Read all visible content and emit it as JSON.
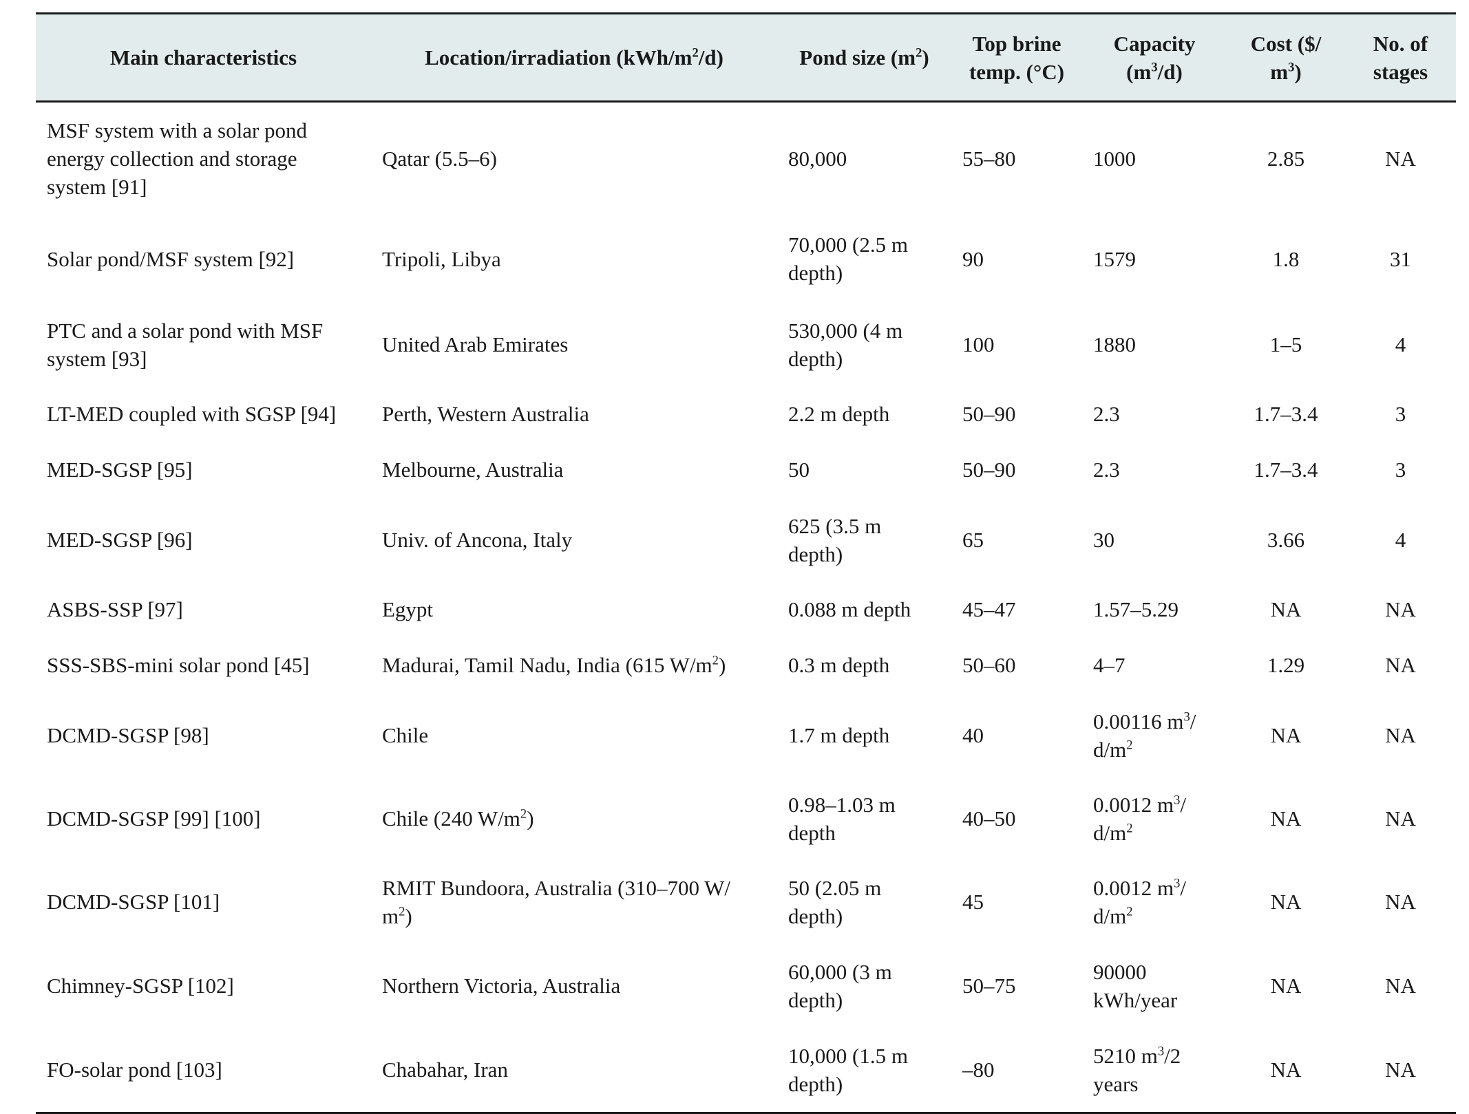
{
  "table": {
    "headers": [
      {
        "text": "Main characteristics"
      },
      {
        "pre": "Location/irradiation (kWh/m",
        "sup": "2",
        "post": "/d)"
      },
      {
        "pre": "Pond size (m",
        "sup": "2",
        "post": ")"
      },
      {
        "line1": "Top brine",
        "line2": "temp. (°C)"
      },
      {
        "line1": "Capacity",
        "line2_pre": "(m",
        "line2_sup": "3",
        "line2_post": "/d)"
      },
      {
        "line1": "Cost ($/",
        "line2_pre": "m",
        "line2_sup": "3",
        "line2_post": ")"
      },
      {
        "line1": "No. of",
        "line2": "stages"
      }
    ],
    "rows": [
      {
        "main": [
          "MSF system with a solar pond",
          "energy collection and storage",
          "system [91]"
        ],
        "location": [
          "Qatar (5.5–6)"
        ],
        "pond": [
          "80,000"
        ],
        "temp": "55–80",
        "capacity": [
          "1000"
        ],
        "cost": "2.85",
        "stages": "NA"
      },
      {
        "main": [
          "Solar pond/MSF system [92]"
        ],
        "location": [
          "Tripoli, Libya"
        ],
        "pond": [
          "70,000 (2.5 m",
          "depth)"
        ],
        "temp": "90",
        "capacity": [
          "1579"
        ],
        "cost": "1.8",
        "stages": "31"
      },
      {
        "main": [
          "PTC and a solar pond with MSF",
          "system [93]"
        ],
        "location": [
          "United Arab Emirates"
        ],
        "pond": [
          "530,000 (4 m",
          "depth)"
        ],
        "temp": "100",
        "capacity": [
          "1880"
        ],
        "cost": "1–5",
        "stages": "4"
      },
      {
        "main": [
          "LT-MED coupled with SGSP [94]"
        ],
        "location": [
          "Perth, Western Australia"
        ],
        "pond": [
          "2.2 m depth"
        ],
        "temp": "50–90",
        "capacity": [
          "2.3"
        ],
        "cost": "1.7–3.4",
        "stages": "3"
      },
      {
        "main": [
          "MED-SGSP [95]"
        ],
        "location": [
          "Melbourne, Australia"
        ],
        "pond": [
          "50"
        ],
        "temp": "50–90",
        "capacity": [
          "2.3"
        ],
        "cost": "1.7–3.4",
        "stages": "3"
      },
      {
        "main": [
          "MED-SGSP [96]"
        ],
        "location": [
          "Univ. of Ancona, Italy"
        ],
        "pond": [
          "625 (3.5 m",
          "depth)"
        ],
        "temp": "65",
        "capacity": [
          "30"
        ],
        "cost": "3.66",
        "stages": "4"
      },
      {
        "main": [
          "ASBS-SSP [97]"
        ],
        "location": [
          "Egypt"
        ],
        "pond": [
          "0.088 m depth"
        ],
        "temp": "45–47",
        "capacity": [
          "1.57–5.29"
        ],
        "cost": "NA",
        "stages": "NA"
      },
      {
        "main": [
          "SSS-SBS-mini solar pond [45]"
        ],
        "location_pre": "Madurai, Tamil Nadu, India (615 W/m",
        "location_sup": "2",
        "location_post": ")",
        "pond": [
          "0.3 m depth"
        ],
        "temp": "50–60",
        "capacity": [
          "4–7"
        ],
        "cost": "1.29",
        "stages": "NA"
      },
      {
        "main": [
          "DCMD-SGSP [98]"
        ],
        "location": [
          "Chile"
        ],
        "pond": [
          "1.7 m depth"
        ],
        "temp": "40",
        "cap1_pre": "0.00116 m",
        "cap1_sup": "3",
        "cap1_post": "/",
        "cap2_pre": "d/m",
        "cap2_sup": "2",
        "cost": "NA",
        "stages": "NA"
      },
      {
        "main": [
          "DCMD-SGSP [99] [100]"
        ],
        "location_pre": "Chile (240 W/m",
        "location_sup": "2",
        "location_post": ")",
        "pond": [
          "0.98–1.03 m",
          "depth"
        ],
        "temp": "40–50",
        "cap1_pre": "0.0012 m",
        "cap1_sup": "3",
        "cap1_post": "/",
        "cap2_pre": "d/m",
        "cap2_sup": "2",
        "cost": "NA",
        "stages": "NA"
      },
      {
        "main": [
          "DCMD-SGSP [101]"
        ],
        "loc1": "RMIT Bundoora, Australia (310–700 W/",
        "loc2_pre": "m",
        "loc2_sup": "2",
        "loc2_post": ")",
        "pond": [
          "50 (2.05 m",
          "depth)"
        ],
        "temp": "45",
        "cap1_pre": "0.0012 m",
        "cap1_sup": "3",
        "cap1_post": "/",
        "cap2_pre": "d/m",
        "cap2_sup": "2",
        "cost": "NA",
        "stages": "NA"
      },
      {
        "main": [
          "Chimney-SGSP [102]"
        ],
        "location": [
          "Northern Victoria, Australia"
        ],
        "pond": [
          "60,000 (3 m",
          "depth)"
        ],
        "temp": "50–75",
        "capacity": [
          "90000",
          "kWh/year"
        ],
        "cost": "NA",
        "stages": "NA"
      },
      {
        "main": [
          "FO-solar pond [103]"
        ],
        "location": [
          "Chabahar, Iran"
        ],
        "pond": [
          "10,000 (1.5 m",
          "depth)"
        ],
        "temp": "–80",
        "cap1_pre": "5210 m",
        "cap1_sup": "3",
        "cap1_post": "/2",
        "cap2_text": "years",
        "cost": "NA",
        "stages": "NA"
      }
    ]
  }
}
